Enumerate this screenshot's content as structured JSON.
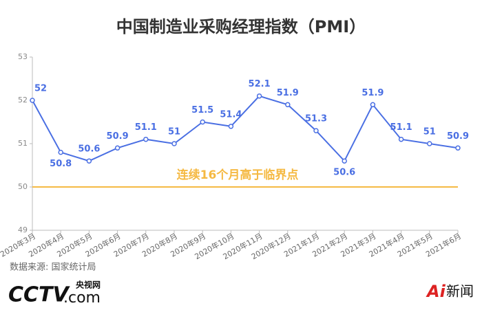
{
  "chart_data": {
    "type": "line",
    "title": "中国制造业采购经理指数（PMI）",
    "categories": [
      "2020年3月",
      "2020年4月",
      "2020年5月",
      "2020年6月",
      "2020年7月",
      "2020年8月",
      "2020年9月",
      "2020年10月",
      "2020年11月",
      "2020年12月",
      "2021年1月",
      "2021年2月",
      "2021年3月",
      "2021年4月",
      "2021年5月",
      "2021年6月"
    ],
    "values": [
      52,
      50.8,
      50.6,
      50.9,
      51.1,
      51,
      51.5,
      51.4,
      52.1,
      51.9,
      51.3,
      50.6,
      51.9,
      51.1,
      51,
      50.9
    ],
    "color": "#4a6fe3",
    "ylim": [
      49,
      53
    ],
    "yticks": [
      49,
      50,
      51,
      52,
      53
    ],
    "reference_line": {
      "value": 50,
      "color": "#f5b942",
      "label": "连续16个月高于临界点"
    },
    "source": "数据来源: 国家统计局",
    "logos": {
      "cctv": "CCTV",
      "com": ".com",
      "cctv_cn": "央视网",
      "ai": "Ai",
      "news": "新闻"
    }
  }
}
